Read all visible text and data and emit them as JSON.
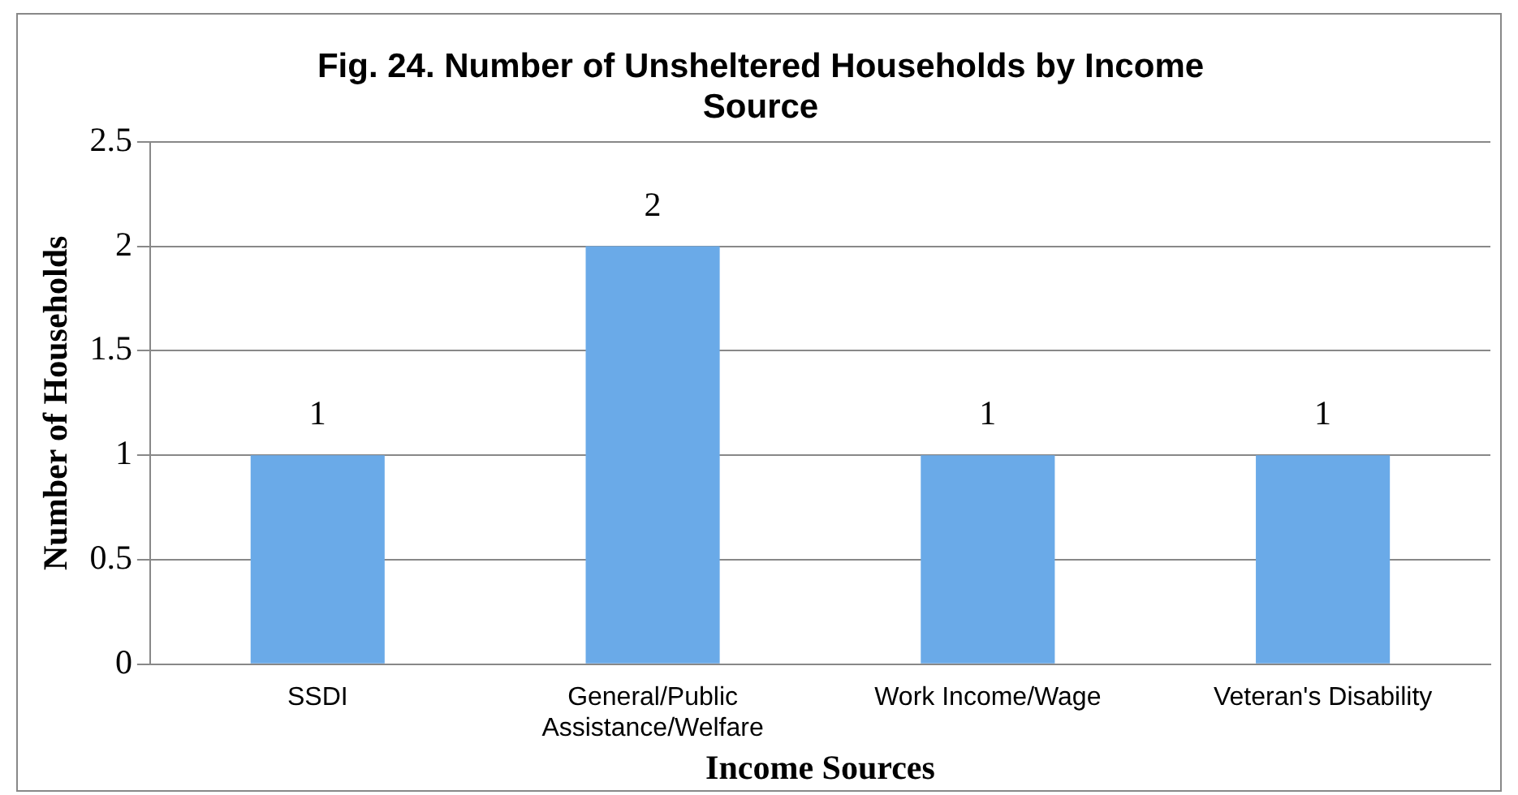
{
  "chart_data": {
    "type": "bar",
    "title": "Fig. 24. Number of Unsheltered Households by Income Source",
    "xlabel": "Income Sources",
    "ylabel": "Number of Households",
    "categories": [
      "SSDI",
      "General/Public Assistance/Welfare",
      "Work Income/Wage",
      "Veteran's Disability"
    ],
    "values": [
      1,
      2,
      1,
      1
    ],
    "color": "#6aaae8",
    "ylim": [
      0,
      2.5
    ],
    "yticks": [
      0,
      0.5,
      1,
      1.5,
      2,
      2.5
    ],
    "grid": "y",
    "data_labels": true,
    "legend": false
  }
}
